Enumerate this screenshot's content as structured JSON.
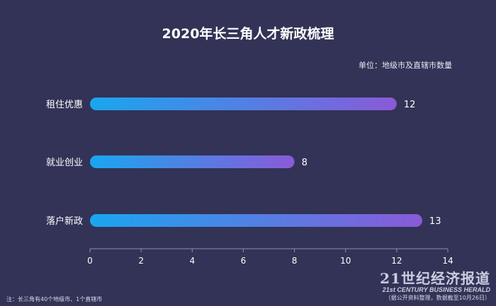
{
  "title": "2020年长三角人才新政梳理",
  "unit_label": "单位：地级市及直辖市数量",
  "footnote": "注：长三角有40个地级市、1个直辖市",
  "brand": {
    "name_cn": "21世纪经济报道",
    "name_en": "21st CENTURY BUSINESS HERALD",
    "source": "（据公开资料整理，数据截至10月26日）"
  },
  "colors": {
    "background": "#323356",
    "bar_start": "#1aa6ef",
    "bar_end": "#8a5ad8",
    "axis": "#8c8fb0"
  },
  "chart_data": {
    "type": "bar",
    "orientation": "horizontal",
    "categories": [
      "租住优惠",
      "就业创业",
      "落户新政"
    ],
    "values": [
      12,
      8,
      13
    ],
    "xlim": [
      0,
      14
    ],
    "xticks": [
      0,
      2,
      4,
      6,
      8,
      10,
      12,
      14
    ],
    "grid": false,
    "legend": "none"
  }
}
